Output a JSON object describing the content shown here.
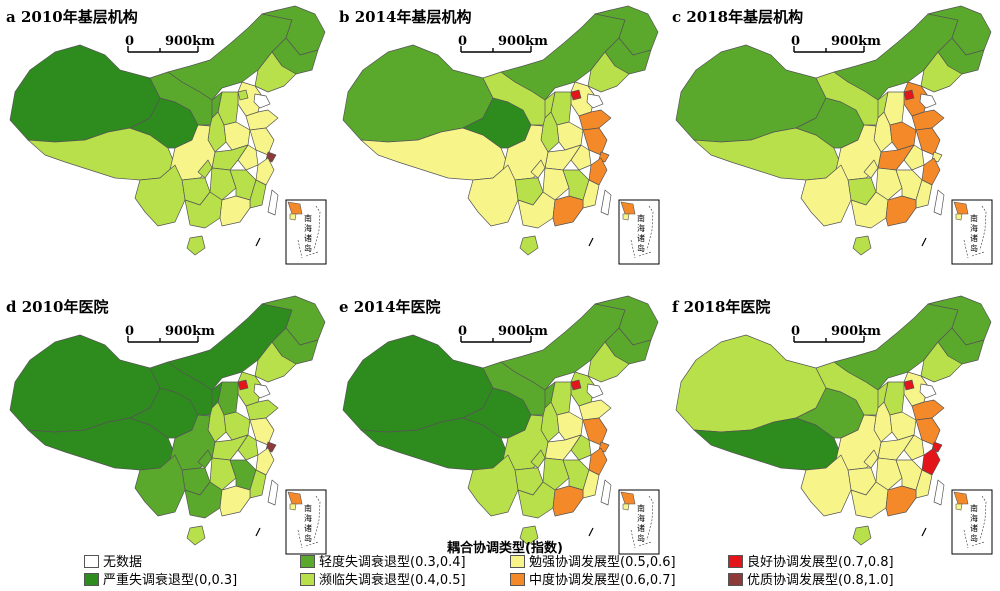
{
  "panels": [
    {
      "label": "a 2010年基层机构",
      "scale_start": "0",
      "scale_end": "900km",
      "inset_text": "南\n海\n诸\n岛"
    },
    {
      "label": "b 2014年基层机构",
      "scale_start": "0",
      "scale_end": "900km",
      "inset_text": "南\n海\n诸\n岛"
    },
    {
      "label": "c 2018年基层机构",
      "scale_start": "0",
      "scale_end": "900km",
      "inset_text": "南\n海\n诸\n岛"
    },
    {
      "label": "d 2010年医院",
      "scale_start": "0",
      "scale_end": "900km",
      "inset_text": "南\n海\n诸\n岛"
    },
    {
      "label": "e 2014年医院",
      "scale_start": "0",
      "scale_end": "900km",
      "inset_text": "南\n海\n诸\n岛"
    },
    {
      "label": "f 2018年医院",
      "scale_start": "0",
      "scale_end": "900km",
      "inset_text": "南\n海\n诸\n岛"
    }
  ],
  "legend": {
    "title": "耦合协调类型(指数)",
    "items": [
      {
        "label": "无数据",
        "color": "#ffffff"
      },
      {
        "label": "严重失调衰退型(0,0.3]",
        "color": "#2e8b1e"
      },
      {
        "label": "轻度失调衰退型(0.3,0.4]",
        "color": "#5aa82c"
      },
      {
        "label": "濒临失调衰退型(0.4,0.5]",
        "color": "#b8e04a"
      },
      {
        "label": "勉强协调发展型(0.5,0.6]",
        "color": "#f7f58a"
      },
      {
        "label": "中度协调发展型(0.6,0.7]",
        "color": "#f4892a"
      },
      {
        "label": "良好协调发展型(0.7,0.8]",
        "color": "#e4141b"
      },
      {
        "label": "优质协调发展型(0.8,1.0]",
        "color": "#8e3a3a"
      }
    ]
  },
  "colors": {
    "c0": "#2e8b1e",
    "c1": "#5aa82c",
    "c2": "#b8e04a",
    "c3": "#f7f58a",
    "c4": "#f4892a",
    "c5": "#e4141b",
    "c6": "#8e3a3a",
    "border": "#555555"
  }
}
